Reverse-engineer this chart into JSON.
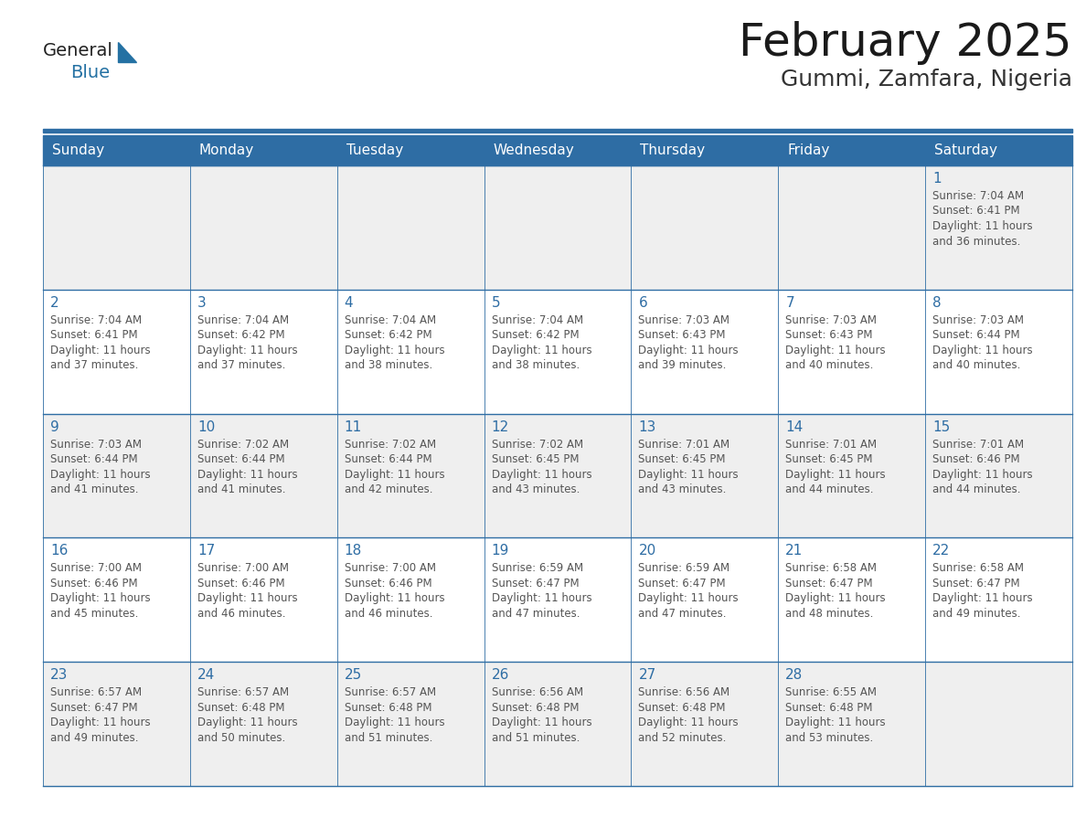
{
  "title": "February 2025",
  "subtitle": "Gummi, Zamfara, Nigeria",
  "header_bg_color": "#2E6DA4",
  "header_text_color": "#FFFFFF",
  "day_names": [
    "Sunday",
    "Monday",
    "Tuesday",
    "Wednesday",
    "Thursday",
    "Friday",
    "Saturday"
  ],
  "row_bg_colors": [
    "#EFEFEF",
    "#FFFFFF",
    "#EFEFEF",
    "#FFFFFF",
    "#EFEFEF"
  ],
  "cell_border_color": "#2E6DA4",
  "date_text_color": "#2E6DA4",
  "info_text_color": "#555555",
  "background_color": "#FFFFFF",
  "logo_general_color": "#222222",
  "logo_blue_color": "#2471A3",
  "calendar": [
    [
      null,
      null,
      null,
      null,
      null,
      null,
      {
        "day": 1,
        "sunrise": "7:04 AM",
        "sunset": "6:41 PM",
        "daylight": "11 hours and 36 minutes."
      }
    ],
    [
      {
        "day": 2,
        "sunrise": "7:04 AM",
        "sunset": "6:41 PM",
        "daylight": "11 hours and 37 minutes."
      },
      {
        "day": 3,
        "sunrise": "7:04 AM",
        "sunset": "6:42 PM",
        "daylight": "11 hours and 37 minutes."
      },
      {
        "day": 4,
        "sunrise": "7:04 AM",
        "sunset": "6:42 PM",
        "daylight": "11 hours and 38 minutes."
      },
      {
        "day": 5,
        "sunrise": "7:04 AM",
        "sunset": "6:42 PM",
        "daylight": "11 hours and 38 minutes."
      },
      {
        "day": 6,
        "sunrise": "7:03 AM",
        "sunset": "6:43 PM",
        "daylight": "11 hours and 39 minutes."
      },
      {
        "day": 7,
        "sunrise": "7:03 AM",
        "sunset": "6:43 PM",
        "daylight": "11 hours and 40 minutes."
      },
      {
        "day": 8,
        "sunrise": "7:03 AM",
        "sunset": "6:44 PM",
        "daylight": "11 hours and 40 minutes."
      }
    ],
    [
      {
        "day": 9,
        "sunrise": "7:03 AM",
        "sunset": "6:44 PM",
        "daylight": "11 hours and 41 minutes."
      },
      {
        "day": 10,
        "sunrise": "7:02 AM",
        "sunset": "6:44 PM",
        "daylight": "11 hours and 41 minutes."
      },
      {
        "day": 11,
        "sunrise": "7:02 AM",
        "sunset": "6:44 PM",
        "daylight": "11 hours and 42 minutes."
      },
      {
        "day": 12,
        "sunrise": "7:02 AM",
        "sunset": "6:45 PM",
        "daylight": "11 hours and 43 minutes."
      },
      {
        "day": 13,
        "sunrise": "7:01 AM",
        "sunset": "6:45 PM",
        "daylight": "11 hours and 43 minutes."
      },
      {
        "day": 14,
        "sunrise": "7:01 AM",
        "sunset": "6:45 PM",
        "daylight": "11 hours and 44 minutes."
      },
      {
        "day": 15,
        "sunrise": "7:01 AM",
        "sunset": "6:46 PM",
        "daylight": "11 hours and 44 minutes."
      }
    ],
    [
      {
        "day": 16,
        "sunrise": "7:00 AM",
        "sunset": "6:46 PM",
        "daylight": "11 hours and 45 minutes."
      },
      {
        "day": 17,
        "sunrise": "7:00 AM",
        "sunset": "6:46 PM",
        "daylight": "11 hours and 46 minutes."
      },
      {
        "day": 18,
        "sunrise": "7:00 AM",
        "sunset": "6:46 PM",
        "daylight": "11 hours and 46 minutes."
      },
      {
        "day": 19,
        "sunrise": "6:59 AM",
        "sunset": "6:47 PM",
        "daylight": "11 hours and 47 minutes."
      },
      {
        "day": 20,
        "sunrise": "6:59 AM",
        "sunset": "6:47 PM",
        "daylight": "11 hours and 47 minutes."
      },
      {
        "day": 21,
        "sunrise": "6:58 AM",
        "sunset": "6:47 PM",
        "daylight": "11 hours and 48 minutes."
      },
      {
        "day": 22,
        "sunrise": "6:58 AM",
        "sunset": "6:47 PM",
        "daylight": "11 hours and 49 minutes."
      }
    ],
    [
      {
        "day": 23,
        "sunrise": "6:57 AM",
        "sunset": "6:47 PM",
        "daylight": "11 hours and 49 minutes."
      },
      {
        "day": 24,
        "sunrise": "6:57 AM",
        "sunset": "6:48 PM",
        "daylight": "11 hours and 50 minutes."
      },
      {
        "day": 25,
        "sunrise": "6:57 AM",
        "sunset": "6:48 PM",
        "daylight": "11 hours and 51 minutes."
      },
      {
        "day": 26,
        "sunrise": "6:56 AM",
        "sunset": "6:48 PM",
        "daylight": "11 hours and 51 minutes."
      },
      {
        "day": 27,
        "sunrise": "6:56 AM",
        "sunset": "6:48 PM",
        "daylight": "11 hours and 52 minutes."
      },
      {
        "day": 28,
        "sunrise": "6:55 AM",
        "sunset": "6:48 PM",
        "daylight": "11 hours and 53 minutes."
      },
      null
    ]
  ]
}
